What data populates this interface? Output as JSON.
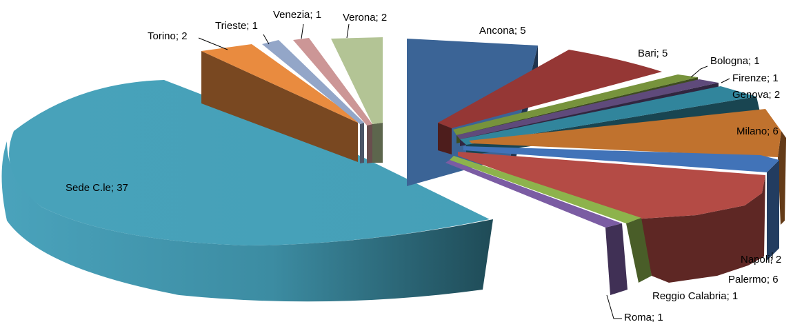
{
  "chart_data": {
    "type": "pie",
    "title": "",
    "slices": [
      {
        "label": "Ancona",
        "value": 5,
        "text": "Ancona; 5",
        "color": "#3B6496"
      },
      {
        "label": "Bari",
        "value": 5,
        "text": "Bari; 5",
        "color": "#953735"
      },
      {
        "label": "Bologna",
        "value": 1,
        "text": "Bologna; 1",
        "color": "#77933C"
      },
      {
        "label": "Firenze",
        "value": 1,
        "text": "Firenze; 1",
        "color": "#5F4A7B"
      },
      {
        "label": "Genova",
        "value": 2,
        "text": "Genova; 2",
        "color": "#31859C"
      },
      {
        "label": "Milano",
        "value": 6,
        "text": "Milano; 6",
        "color": "#C0722E"
      },
      {
        "label": "Napoli",
        "value": 2,
        "text": "Napoli; 2",
        "color": "#4173B8"
      },
      {
        "label": "Palermo",
        "value": 6,
        "text": "Palermo; 6",
        "color": "#B44B45"
      },
      {
        "label": "Reggio Calabria",
        "value": 1,
        "text": "Reggio Calabria; 1",
        "color": "#8DB34C"
      },
      {
        "label": "Roma",
        "value": 1,
        "text": "Roma; 1",
        "color": "#7B5CA3"
      },
      {
        "label": "Sede C.le",
        "value": 37,
        "text": "Sede C.le; 37",
        "color": "#4BA1BA"
      },
      {
        "label": "Torino",
        "value": 2,
        "text": "Torino; 2",
        "color": "#E98B3F"
      },
      {
        "label": "Trieste",
        "value": 1,
        "text": "Trieste; 1",
        "color": "#93A6C8"
      },
      {
        "label": "Venezia",
        "value": 1,
        "text": "Venezia; 1",
        "color": "#CC9696"
      },
      {
        "label": "Verona",
        "value": 2,
        "text": "Verona; 2",
        "color": "#B3C495"
      }
    ]
  }
}
